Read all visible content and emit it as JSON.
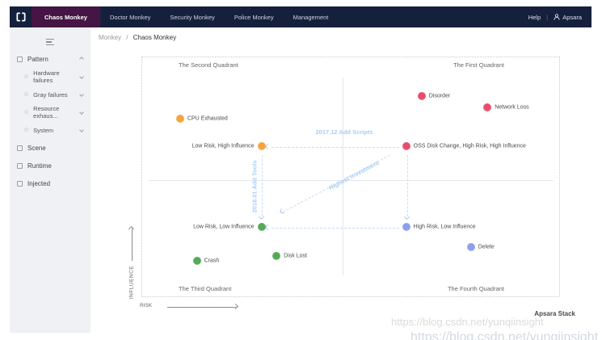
{
  "navbar": {
    "brand_icon": "bracket-logo",
    "tabs": [
      {
        "label": "Chaos Monkey",
        "active": true
      },
      {
        "label": "Doctor Monkey",
        "active": false
      },
      {
        "label": "Security Monkey",
        "active": false
      },
      {
        "label": "Police Monkey",
        "active": false
      },
      {
        "label": "Management",
        "active": false
      }
    ],
    "help_label": "Help",
    "user_name": "Apsara"
  },
  "sidebar": {
    "groups": [
      {
        "label": "Pattern",
        "icon": "square-icon",
        "expanded": true,
        "children": [
          {
            "label": "Hardware failures",
            "icon": "star-icon"
          },
          {
            "label": "Gray failures",
            "icon": "star-icon"
          },
          {
            "label": "Resource exhaus...",
            "icon": "star-icon"
          },
          {
            "label": "System",
            "icon": "star-icon"
          }
        ]
      },
      {
        "label": "Scene",
        "icon": "square-icon"
      },
      {
        "label": "Runtime",
        "icon": "square-icon"
      },
      {
        "label": "Injected",
        "icon": "square-icon"
      }
    ]
  },
  "breadcrumb": {
    "parent": "Monkey",
    "separator": "/",
    "current": "Chaos Monkey"
  },
  "chart_data": {
    "type": "scatter",
    "title": "",
    "xlabel": "RISK",
    "ylabel": "INFLUENCE",
    "grid": "quadrant split lines only, dotted outer border",
    "quadrants": {
      "first": "The First Quadrant",
      "second": "The Second Quadrant",
      "third": "The Third Quadrant",
      "fourth": "The Fourth Quadrant"
    },
    "points": [
      {
        "label": "CPU Exhausted",
        "group": "orange",
        "risk": 9,
        "influence": 74,
        "x_pct": 9.1,
        "y_pct": 25.8,
        "label_side": "right"
      },
      {
        "label": "Low Risk, High Influence",
        "group": "orange",
        "risk": 29,
        "influence": 63,
        "x_pct": 28.6,
        "y_pct": 37.2,
        "label_side": "left"
      },
      {
        "label": "Disorder",
        "group": "red",
        "risk": 67,
        "influence": 84,
        "x_pct": 67.0,
        "y_pct": 16.1,
        "label_side": "right"
      },
      {
        "label": "Network Loss",
        "group": "red",
        "risk": 83,
        "influence": 79,
        "x_pct": 82.8,
        "y_pct": 20.8,
        "label_side": "right"
      },
      {
        "label": "OSS Disk Change, High Risk, High Influence",
        "group": "red",
        "risk": 63,
        "influence": 63,
        "x_pct": 63.3,
        "y_pct": 37.2,
        "label_side": "right"
      },
      {
        "label": "Low Risk, Low Influence",
        "group": "green",
        "risk": 29,
        "influence": 29,
        "x_pct": 28.6,
        "y_pct": 70.8,
        "label_side": "left"
      },
      {
        "label": "Crash",
        "group": "green",
        "risk": 13,
        "influence": 15,
        "x_pct": 13.1,
        "y_pct": 85.2,
        "label_side": "right"
      },
      {
        "label": "Disk Lost",
        "group": "green",
        "risk": 32,
        "influence": 17,
        "x_pct": 32.2,
        "y_pct": 83.2,
        "label_side": "right"
      },
      {
        "label": "High Risk, Low Influence",
        "group": "blue",
        "risk": 63,
        "influence": 29,
        "x_pct": 63.3,
        "y_pct": 70.8,
        "label_side": "right"
      },
      {
        "label": "Delete",
        "group": "blue",
        "risk": 79,
        "influence": 21,
        "x_pct": 78.8,
        "y_pct": 79.5,
        "label_side": "right"
      }
    ],
    "annotations": [
      {
        "label": "2017.12 Add Scripts",
        "type": "arrow",
        "from": "OSS Disk Change",
        "to": "Low Risk, High Influence"
      },
      {
        "label": "2018.01 Add Tools",
        "type": "arrow",
        "from": "Low Risk, High Influence",
        "to": "Low Risk, Low Influence"
      },
      {
        "label": "Highest Investment",
        "type": "diagonal-arrow",
        "from": "OSS Disk Change",
        "to": "Low Risk, Low Influence"
      }
    ],
    "colors": {
      "orange": "#F5A43C",
      "red": "#E84C6A",
      "green": "#57A957",
      "blue": "#8AA0EE",
      "annotation": "#A9CDF4",
      "navbar": "#15203C",
      "active_tab": "#451544",
      "sidebar_bg": "#EFF1F4"
    }
  },
  "footer": {
    "stack_label": "Apsara Stack"
  },
  "watermark": {
    "line1": "https://blog.csdn.net/yunqiinsight",
    "line2": "https://blog.csdn.net/yunqiinsight"
  }
}
